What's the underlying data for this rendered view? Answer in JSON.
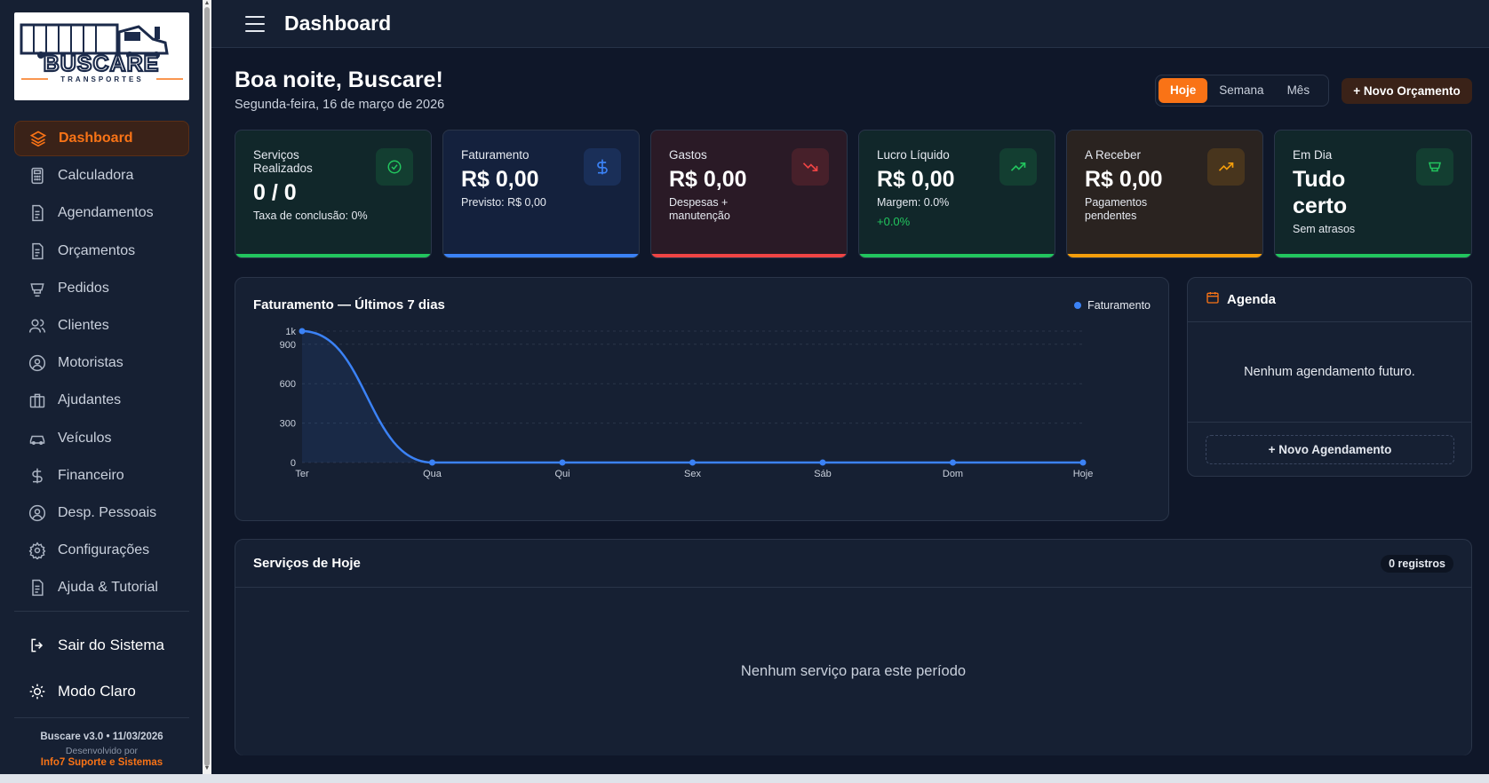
{
  "sidebar": {
    "logo": {
      "brand": "BUSCARE",
      "tagline": "TRANSPORTES"
    },
    "items": [
      {
        "label": "Dashboard",
        "icon": "layers-icon",
        "active": true
      },
      {
        "label": "Calculadora",
        "icon": "calculator-icon"
      },
      {
        "label": "Agendamentos",
        "icon": "document-icon"
      },
      {
        "label": "Orçamentos",
        "icon": "document-icon"
      },
      {
        "label": "Pedidos",
        "icon": "cup-icon"
      },
      {
        "label": "Clientes",
        "icon": "users-icon"
      },
      {
        "label": "Motoristas",
        "icon": "user-circle-icon"
      },
      {
        "label": "Ajudantes",
        "icon": "briefcase-icon"
      },
      {
        "label": "Veículos",
        "icon": "car-icon"
      },
      {
        "label": "Financeiro",
        "icon": "dollar-icon"
      },
      {
        "label": "Desp. Pessoais",
        "icon": "user-circle-icon"
      },
      {
        "label": "Configurações",
        "icon": "gear-icon"
      },
      {
        "label": "Ajuda & Tutorial",
        "icon": "document-icon"
      }
    ],
    "logout": "Sair do Sistema",
    "theme": "Modo Claro",
    "version": "Buscare v3.0 • 11/03/2026",
    "developed_by": "Desenvolvido por",
    "company": "Info7 Suporte e Sistemas"
  },
  "header": {
    "title": "Dashboard"
  },
  "greeting": {
    "title": "Boa noite, Buscare!",
    "date": "Segunda-feira, 16 de março de 2026"
  },
  "period": {
    "options": [
      "Hoje",
      "Semana",
      "Mês"
    ],
    "selected": "Hoje"
  },
  "new_quote_button": "+ Novo Orçamento",
  "kpis": [
    {
      "label": "Serviços Realizados",
      "value": "0 / 0",
      "sub": "Taxa de conclusão: 0%",
      "accent": "#22c55e",
      "bg": "#11272a",
      "icon": "check-circle-icon"
    },
    {
      "label": "Faturamento",
      "value": "R$ 0,00",
      "sub": "Previsto: R$ 0,00",
      "accent": "#3b82f6",
      "bg": "#14213d",
      "icon": "dollar-icon"
    },
    {
      "label": "Gastos",
      "value": "R$ 0,00",
      "sub": "Despesas + manutenção",
      "accent": "#ef4444",
      "bg": "#2a1a26",
      "icon": "trending-down-icon"
    },
    {
      "label": "Lucro Líquido",
      "value": "R$ 0,00",
      "sub": "Margem: 0.0%",
      "sub2": "+0.0%",
      "accent": "#22c55e",
      "bg": "#11272a",
      "icon": "trending-up-icon"
    },
    {
      "label": "A Receber",
      "value": "R$ 0,00",
      "sub": "Pagamentos pendentes",
      "accent": "#f59e0b",
      "bg": "#2a2320",
      "icon": "trending-up-icon"
    },
    {
      "label": "Em Dia",
      "value": "Tudo certo",
      "sub": "Sem atrasos",
      "accent": "#22c55e",
      "bg": "#11272a",
      "icon": "cup-icon"
    }
  ],
  "chart": {
    "title": "Faturamento — Últimos 7 dias",
    "legend": "Faturamento"
  },
  "chart_data": {
    "type": "line",
    "title": "Faturamento — Últimos 7 dias",
    "categories": [
      "Ter",
      "Qua",
      "Qui",
      "Sex",
      "Sáb",
      "Dom",
      "Hoje"
    ],
    "series": [
      {
        "name": "Faturamento",
        "values": [
          1000,
          0,
          0,
          0,
          0,
          0,
          0
        ]
      }
    ],
    "yticks": [
      "0",
      "300",
      "600",
      "900",
      "1k"
    ],
    "ylim": [
      0,
      1000
    ],
    "grid": true,
    "legend": "top-right",
    "color": "#3b82f6"
  },
  "agenda": {
    "title": "Agenda",
    "empty": "Nenhum agendamento futuro.",
    "button": "+ Novo Agendamento"
  },
  "services": {
    "title": "Serviços de Hoje",
    "count": "0 registros",
    "empty": "Nenhum serviço para este período"
  }
}
